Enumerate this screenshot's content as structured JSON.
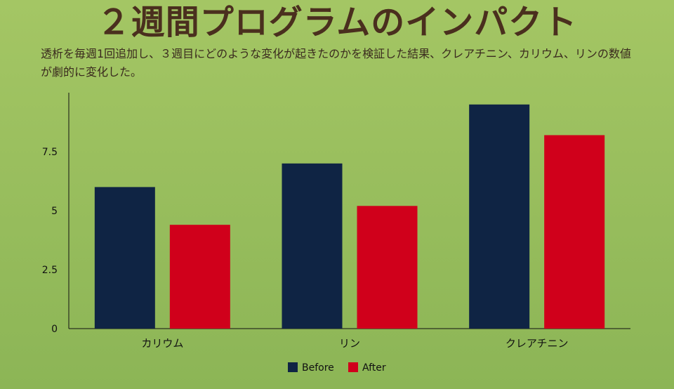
{
  "title": "２週間プログラムのインパクト",
  "description": "透析を毎週1回追加し、３週目にどのような変化が起きたのかを検証した結果、クレアチニン、カリウム、リンの数値が劇的に変化した。",
  "chart_data": {
    "type": "bar",
    "categories": [
      "カリウム",
      "リン",
      "クレアチニン"
    ],
    "series": [
      {
        "name": "Before",
        "values": [
          6.0,
          7.0,
          9.5
        ],
        "color": "#0f2444"
      },
      {
        "name": "After",
        "values": [
          4.4,
          5.2,
          8.2
        ],
        "color": "#d0001b"
      }
    ],
    "yticks": [
      {
        "value": 0,
        "label": "0"
      },
      {
        "value": 2.5,
        "label": "2.5"
      },
      {
        "value": 5,
        "label": "5"
      },
      {
        "value": 7.5,
        "label": "7.5"
      }
    ],
    "ylim": [
      0,
      10
    ],
    "xlabel": "",
    "ylabel": "",
    "grid": false,
    "legend": "bottom-center"
  }
}
